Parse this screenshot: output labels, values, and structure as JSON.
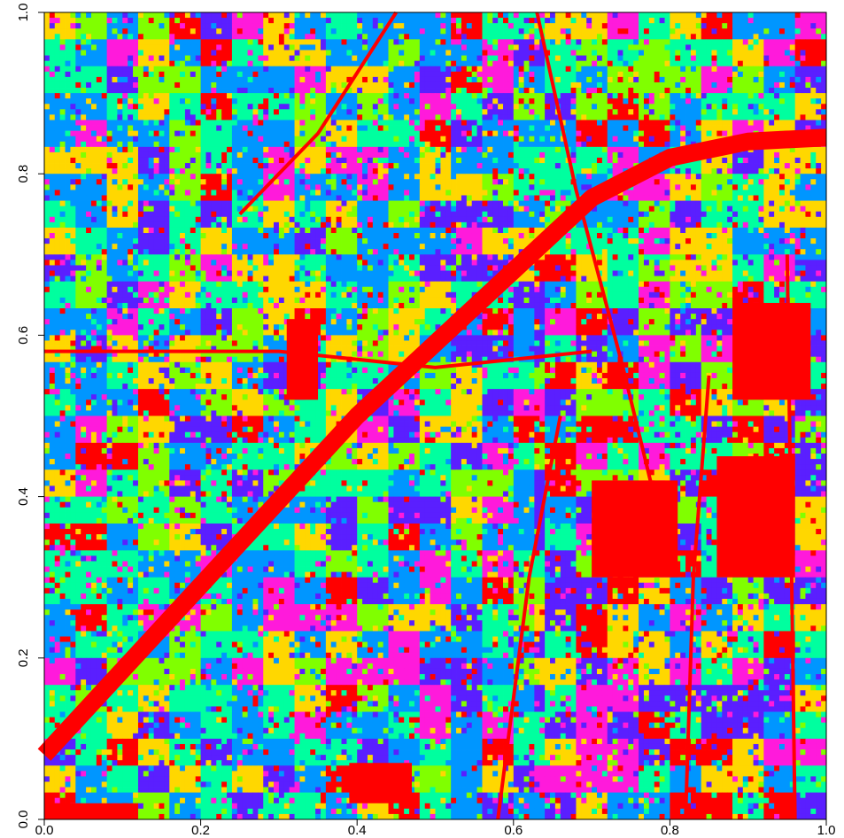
{
  "chart_data": {
    "type": "heatmap",
    "title": "",
    "xlabel": "",
    "ylabel": "",
    "xlim": [
      0.0,
      1.0
    ],
    "ylim": [
      0.0,
      1.0
    ],
    "x_ticks": [
      "0.0",
      "0.2",
      "0.4",
      "0.6",
      "0.8",
      "1.0"
    ],
    "y_ticks": [
      "0.0",
      "0.2",
      "0.4",
      "0.6",
      "0.8",
      "1.0"
    ],
    "x_tick_values": [
      0.0,
      0.2,
      0.4,
      0.6,
      0.8,
      1.0
    ],
    "y_tick_values": [
      0.0,
      0.2,
      0.4,
      0.6,
      0.8,
      1.0
    ],
    "grid": false,
    "legend": "none",
    "classes": [
      {
        "color": "#FF0000"
      },
      {
        "color": "#FFD700"
      },
      {
        "color": "#80FF00"
      },
      {
        "color": "#00FF9F"
      },
      {
        "color": "#0096FF"
      },
      {
        "color": "#5A1FFF"
      },
      {
        "color": "#FF1ADB"
      }
    ],
    "features": {
      "highway": {
        "color": "#FF0000",
        "path": [
          [
            0.0,
            0.08
          ],
          [
            0.2,
            0.29
          ],
          [
            0.4,
            0.5
          ],
          [
            0.5,
            0.59
          ],
          [
            0.6,
            0.68
          ],
          [
            0.7,
            0.77
          ],
          [
            0.8,
            0.82
          ],
          [
            0.9,
            0.84
          ],
          [
            1.0,
            0.845
          ]
        ]
      },
      "roads": [
        [
          [
            0.63,
            1.0
          ],
          [
            0.68,
            0.78
          ],
          [
            0.74,
            0.56
          ],
          [
            0.78,
            0.4
          ]
        ],
        [
          [
            0.85,
            0.55
          ],
          [
            0.83,
            0.3
          ],
          [
            0.82,
            0.0
          ]
        ],
        [
          [
            0.95,
            0.7
          ],
          [
            0.96,
            0.0
          ]
        ],
        [
          [
            0.0,
            0.58
          ],
          [
            0.3,
            0.58
          ],
          [
            0.5,
            0.56
          ],
          [
            0.7,
            0.58
          ]
        ],
        [
          [
            0.25,
            0.75
          ],
          [
            0.35,
            0.85
          ],
          [
            0.45,
            1.0
          ]
        ],
        [
          [
            0.58,
            0.0
          ],
          [
            0.62,
            0.3
          ],
          [
            0.66,
            0.5
          ]
        ]
      ],
      "urban_blocks": [
        {
          "x": 0.7,
          "y": 0.3,
          "w": 0.11,
          "h": 0.12
        },
        {
          "x": 0.86,
          "y": 0.3,
          "w": 0.1,
          "h": 0.15
        },
        {
          "x": 0.88,
          "y": 0.52,
          "w": 0.1,
          "h": 0.12
        },
        {
          "x": 0.31,
          "y": 0.52,
          "w": 0.04,
          "h": 0.1
        },
        {
          "x": 0.0,
          "y": 0.0,
          "w": 0.12,
          "h": 0.02
        },
        {
          "x": 0.39,
          "y": 0.02,
          "w": 0.08,
          "h": 0.05
        }
      ]
    }
  }
}
